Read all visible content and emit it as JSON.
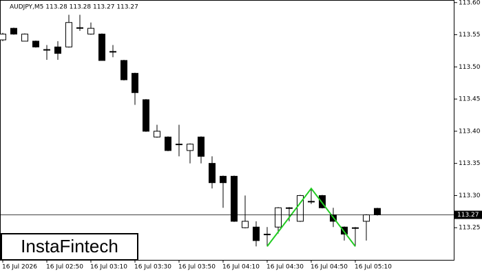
{
  "chart_data": {
    "type": "candlestick",
    "title": "AUDJPY,M5  113.28 113.28 113.27 113.27",
    "watermark": "InstaFintech",
    "categories": [
      "16 Jul 2026",
      null,
      null,
      null,
      "16 Jul 02:50",
      null,
      null,
      null,
      "16 Jul 03:10",
      null,
      null,
      null,
      "16 Jul 03:30",
      null,
      null,
      null,
      "16 Jul 03:50",
      null,
      null,
      null,
      "16 Jul 04:10",
      null,
      null,
      null,
      "16 Jul 04:30",
      null,
      null,
      null,
      "16 Jul 04:50",
      null,
      null,
      null,
      "16 Jul 05:10",
      null,
      null
    ],
    "open": [
      113.542,
      113.56,
      113.54,
      113.54,
      113.527,
      113.531,
      113.531,
      113.56,
      113.551,
      113.551,
      113.524,
      113.51,
      113.49,
      113.449,
      113.391,
      113.391,
      113.38,
      113.37,
      113.391,
      113.35,
      113.33,
      113.33,
      113.25,
      113.251,
      113.24,
      113.251,
      113.28,
      113.26,
      113.291,
      113.3,
      113.27,
      113.251,
      113.25,
      113.26,
      113.28
    ],
    "high": [
      113.553,
      113.561,
      113.552,
      113.541,
      113.534,
      113.54,
      113.581,
      113.581,
      113.569,
      113.552,
      113.534,
      113.511,
      113.491,
      113.45,
      113.41,
      113.392,
      113.41,
      113.381,
      113.392,
      113.361,
      113.331,
      113.331,
      113.3,
      113.26,
      113.251,
      113.282,
      113.282,
      113.301,
      113.31,
      113.301,
      113.281,
      113.252,
      113.251,
      113.271,
      113.281
    ],
    "low": [
      113.54,
      113.55,
      113.54,
      113.53,
      113.511,
      113.511,
      113.53,
      113.556,
      113.55,
      113.51,
      113.515,
      113.479,
      113.441,
      113.399,
      113.39,
      113.369,
      113.361,
      113.35,
      113.35,
      113.311,
      113.281,
      113.259,
      113.249,
      113.221,
      113.221,
      113.241,
      113.26,
      113.259,
      113.287,
      113.28,
      113.251,
      113.23,
      113.221,
      113.23,
      113.269
    ],
    "close": [
      113.551,
      113.551,
      113.551,
      113.531,
      113.527,
      113.521,
      113.569,
      113.561,
      113.56,
      113.51,
      113.524,
      113.48,
      113.46,
      113.4,
      113.4,
      113.37,
      113.38,
      113.38,
      113.361,
      113.32,
      113.32,
      113.26,
      113.26,
      113.23,
      113.24,
      113.281,
      113.281,
      113.3,
      113.291,
      113.281,
      113.26,
      113.24,
      113.25,
      113.27,
      113.27
    ],
    "up_color": "#ffffff",
    "down_color": "#000000",
    "pattern": {
      "x": [
        24,
        28,
        32
      ],
      "values": [
        113.221,
        113.311,
        113.221
      ],
      "color": "#22cc22"
    },
    "last_price": 113.27,
    "ylim": [
      113.2,
      113.604
    ],
    "yticks": [
      {
        "value": 113.6,
        "label": "113.60"
      },
      113.55,
      {
        "value": 113.5,
        "label": "113.50"
      },
      113.45,
      {
        "value": 113.4,
        "label": "113.40"
      },
      113.35,
      {
        "value": 113.3,
        "label": "113.30"
      },
      113.25
    ]
  }
}
